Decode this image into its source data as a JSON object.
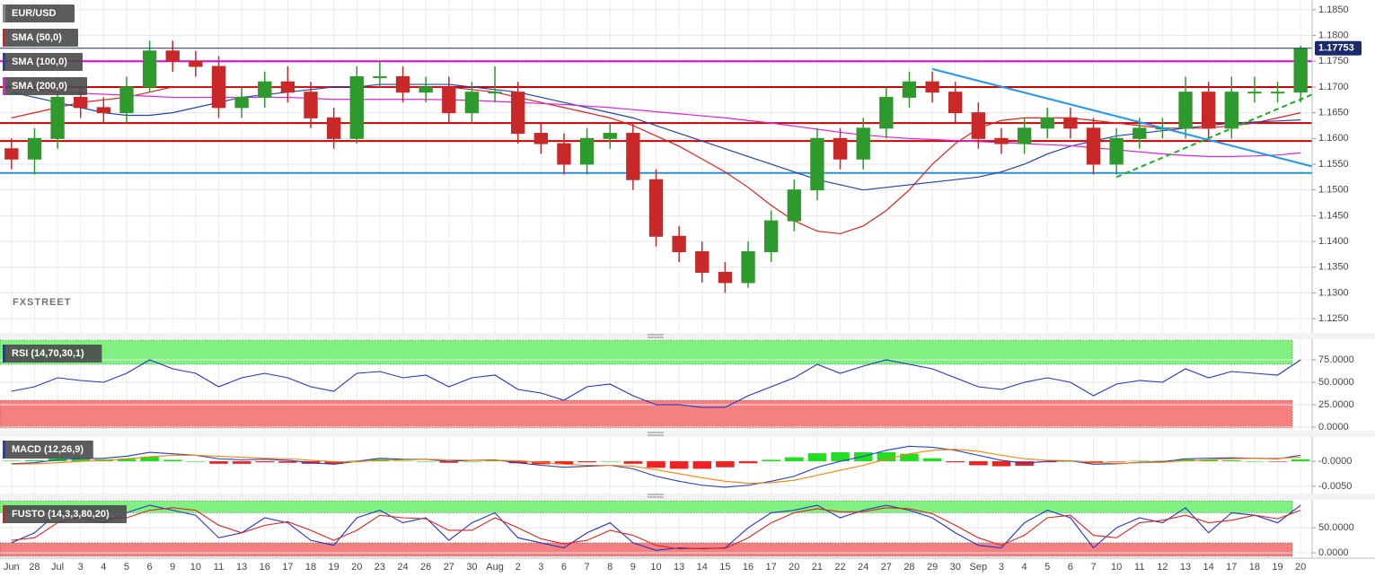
{
  "chart_data": [
    {
      "type": "candlestick",
      "name": "EUR/USD",
      "categories": [
        "Jun",
        "28",
        "Jul",
        "3",
        "4",
        "5",
        "6",
        "9",
        "10",
        "11",
        "13",
        "16",
        "17",
        "18",
        "19",
        "20",
        "23",
        "24",
        "26",
        "27",
        "30",
        "Aug",
        "2",
        "3",
        "6",
        "7",
        "8",
        "9",
        "10",
        "13",
        "14",
        "15",
        "16",
        "17",
        "20",
        "21",
        "22",
        "24",
        "27",
        "28",
        "29",
        "30",
        "Sep",
        "3",
        "4",
        "5",
        "6",
        "7",
        "10",
        "11",
        "12",
        "13",
        "14",
        "17",
        "18",
        "19",
        "20"
      ],
      "open": [
        1.158,
        1.156,
        1.16,
        1.168,
        1.166,
        1.165,
        1.17,
        1.177,
        1.175,
        1.174,
        1.166,
        1.168,
        1.171,
        1.169,
        1.164,
        1.16,
        1.172,
        1.172,
        1.169,
        1.17,
        1.165,
        1.169,
        1.169,
        1.161,
        1.159,
        1.155,
        1.16,
        1.161,
        1.152,
        1.141,
        1.138,
        1.134,
        1.132,
        1.138,
        1.144,
        1.15,
        1.16,
        1.156,
        1.162,
        1.168,
        1.171,
        1.169,
        1.165,
        1.16,
        1.159,
        1.162,
        1.164,
        1.162,
        1.155,
        1.16,
        1.162,
        1.162,
        1.169,
        1.162,
        1.169,
        1.169,
        1.169
      ],
      "high": [
        1.16,
        1.162,
        1.17,
        1.17,
        1.168,
        1.172,
        1.179,
        1.179,
        1.177,
        1.176,
        1.17,
        1.173,
        1.174,
        1.171,
        1.166,
        1.174,
        1.175,
        1.174,
        1.172,
        1.172,
        1.171,
        1.174,
        1.171,
        1.163,
        1.161,
        1.162,
        1.163,
        1.163,
        1.154,
        1.143,
        1.14,
        1.136,
        1.14,
        1.146,
        1.152,
        1.162,
        1.162,
        1.164,
        1.17,
        1.173,
        1.173,
        1.171,
        1.167,
        1.162,
        1.164,
        1.166,
        1.166,
        1.164,
        1.162,
        1.164,
        1.164,
        1.172,
        1.171,
        1.172,
        1.172,
        1.171,
        1.178
      ],
      "low": [
        1.154,
        1.153,
        1.158,
        1.164,
        1.163,
        1.163,
        1.169,
        1.173,
        1.172,
        1.164,
        1.164,
        1.166,
        1.167,
        1.162,
        1.158,
        1.159,
        1.17,
        1.167,
        1.167,
        1.163,
        1.163,
        1.167,
        1.159,
        1.157,
        1.153,
        1.153,
        1.158,
        1.15,
        1.139,
        1.136,
        1.132,
        1.13,
        1.131,
        1.136,
        1.142,
        1.148,
        1.154,
        1.154,
        1.16,
        1.166,
        1.167,
        1.163,
        1.158,
        1.157,
        1.157,
        1.16,
        1.16,
        1.153,
        1.153,
        1.158,
        1.16,
        1.16,
        1.16,
        1.16,
        1.167,
        1.167,
        1.167
      ],
      "close": [
        1.156,
        1.16,
        1.168,
        1.166,
        1.165,
        1.17,
        1.177,
        1.175,
        1.174,
        1.166,
        1.168,
        1.171,
        1.169,
        1.164,
        1.16,
        1.172,
        1.172,
        1.169,
        1.17,
        1.165,
        1.169,
        1.169,
        1.161,
        1.159,
        1.155,
        1.16,
        1.161,
        1.152,
        1.141,
        1.138,
        1.134,
        1.132,
        1.138,
        1.144,
        1.15,
        1.16,
        1.156,
        1.162,
        1.168,
        1.171,
        1.169,
        1.165,
        1.16,
        1.159,
        1.162,
        1.164,
        1.162,
        1.155,
        1.16,
        1.162,
        1.162,
        1.169,
        1.162,
        1.169,
        1.169,
        1.169,
        1.1775
      ],
      "up_color": "#2e9a2e",
      "down_color": "#c82828",
      "name_color": "#888888",
      "series": [
        {
          "name": "SMA (50,0)",
          "color": "#e02020",
          "values": [
            1.164,
            1.165,
            1.166,
            1.167,
            1.1675,
            1.168,
            1.169,
            1.17,
            1.17,
            1.17,
            1.17,
            1.17,
            1.17,
            1.17,
            1.17,
            1.17,
            1.17,
            1.17,
            1.17,
            1.17,
            1.1695,
            1.169,
            1.168,
            1.167,
            1.166,
            1.165,
            1.164,
            1.1625,
            1.1605,
            1.1585,
            1.156,
            1.1535,
            1.1505,
            1.147,
            1.144,
            1.142,
            1.1415,
            1.143,
            1.146,
            1.15,
            1.155,
            1.159,
            1.162,
            1.1635,
            1.164,
            1.164,
            1.164,
            1.1635,
            1.163,
            1.1625,
            1.162,
            1.162,
            1.162,
            1.1625,
            1.163,
            1.164,
            1.165
          ]
        },
        {
          "name": "SMA (100,0)",
          "color": "#2244aa",
          "values": [
            1.169,
            1.168,
            1.167,
            1.166,
            1.165,
            1.1645,
            1.1645,
            1.165,
            1.166,
            1.167,
            1.168,
            1.1685,
            1.169,
            1.1695,
            1.17,
            1.17,
            1.1705,
            1.1705,
            1.1705,
            1.1705,
            1.17,
            1.1695,
            1.169,
            1.168,
            1.167,
            1.166,
            1.165,
            1.164,
            1.1625,
            1.161,
            1.1595,
            1.158,
            1.1565,
            1.155,
            1.1535,
            1.152,
            1.151,
            1.15,
            1.1505,
            1.151,
            1.1515,
            1.152,
            1.1525,
            1.1535,
            1.155,
            1.157,
            1.1585,
            1.1595,
            1.1605,
            1.161,
            1.1615,
            1.162,
            1.1625,
            1.163,
            1.1632,
            1.1634,
            1.1636
          ]
        },
        {
          "name": "SMA (200,0)",
          "color": "#dd22dd",
          "values": [
            1.17,
            1.1695,
            1.169,
            1.1688,
            1.1686,
            1.1684,
            1.1682,
            1.168,
            1.168,
            1.168,
            1.168,
            1.168,
            1.168,
            1.1678,
            1.1676,
            1.1676,
            1.1676,
            1.1676,
            1.1676,
            1.1675,
            1.1674,
            1.1672,
            1.167,
            1.1668,
            1.1666,
            1.1663,
            1.166,
            1.1656,
            1.1652,
            1.1648,
            1.1644,
            1.164,
            1.1635,
            1.163,
            1.1624,
            1.1618,
            1.1612,
            1.1607,
            1.1603,
            1.16,
            1.1598,
            1.1596,
            1.1594,
            1.1592,
            1.159,
            1.1588,
            1.1586,
            1.1582,
            1.1578,
            1.1574,
            1.157,
            1.1567,
            1.1565,
            1.1565,
            1.1566,
            1.1568,
            1.1572
          ]
        }
      ],
      "levels": [
        {
          "value": 1.175,
          "color": "#e000e0"
        },
        {
          "value": 1.17,
          "color": "#cc0000"
        },
        {
          "value": 1.163,
          "color": "#cc0000"
        },
        {
          "value": 1.1595,
          "color": "#cc0000"
        },
        {
          "value": 1.1533,
          "color": "#2a8fd0"
        }
      ],
      "trendlines": [
        {
          "x": [
            40,
            57
          ],
          "values": [
            1.1735,
            1.154
          ],
          "color": "#2196f3",
          "dashed": false
        },
        {
          "x": [
            48,
            57
          ],
          "values": [
            1.1525,
            1.1695
          ],
          "color": "#22aa22",
          "dashed": true
        }
      ],
      "last_price": 1.17753,
      "last_price_color": "#1a2a6c",
      "watermark": "FXSTREET",
      "ylim": [
        1.1224,
        1.1869
      ],
      "yticks": [
        {
          "value": 1.185,
          "label": "1.1850"
        },
        {
          "value": 1.18,
          "label": "1.1800"
        },
        {
          "value": 1.175,
          "label": "1.1750"
        },
        {
          "value": 1.17,
          "label": "1.1700"
        },
        {
          "value": 1.165,
          "label": "1.1650"
        },
        {
          "value": 1.16,
          "label": "1.1600"
        },
        {
          "value": 1.155,
          "label": "1.1550"
        },
        {
          "value": 1.15,
          "label": "1.1500"
        },
        {
          "value": 1.145,
          "label": "1.1450"
        },
        {
          "value": 1.14,
          "label": "1.1400"
        },
        {
          "value": 1.135,
          "label": "1.1350"
        },
        {
          "value": 1.13,
          "label": "1.1300"
        },
        {
          "value": 1.125,
          "label": "1.1250"
        }
      ],
      "grid": true
    },
    {
      "type": "line",
      "title": "RSI (14,70,30,1)",
      "title_color": "#2233cc",
      "series": [
        {
          "color": "#2233cc",
          "values": [
            40,
            45,
            55,
            52,
            50,
            60,
            75,
            65,
            60,
            45,
            55,
            60,
            55,
            45,
            40,
            60,
            62,
            55,
            58,
            45,
            55,
            58,
            42,
            38,
            30,
            45,
            48,
            35,
            25,
            25,
            22,
            22,
            35,
            45,
            55,
            70,
            60,
            68,
            75,
            70,
            65,
            55,
            45,
            42,
            50,
            55,
            50,
            35,
            48,
            52,
            50,
            65,
            55,
            62,
            60,
            58,
            75
          ]
        }
      ],
      "bands": [
        {
          "from": 70,
          "to": 97,
          "color": "#80f080"
        },
        {
          "from": -1,
          "to": 30,
          "color": "#f48080"
        }
      ],
      "ylim": [
        -1,
        97
      ],
      "yticks": [
        {
          "value": 75,
          "label": "75.0000"
        },
        {
          "value": 50,
          "label": "50.0000"
        },
        {
          "value": 25,
          "label": "25.0000"
        },
        {
          "value": 0,
          "label": "0.0000"
        }
      ]
    },
    {
      "type": "macd",
      "title": "MACD (12,26,9)",
      "title_color": "#2040c0",
      "series": [
        {
          "color": "#2040c0",
          "values": [
            -0.0005,
            -0.0003,
            0.0003,
            0.0005,
            0.0006,
            0.001,
            0.0018,
            0.0015,
            0.0012,
            0.0005,
            0.0003,
            0.0004,
            0.0002,
            -0.0003,
            -0.0006,
            0.0,
            0.0006,
            0.0004,
            0.0004,
            0.0,
            0.0002,
            0.0003,
            -0.0003,
            -0.0008,
            -0.0012,
            -0.001,
            -0.0008,
            -0.0015,
            -0.003,
            -0.004,
            -0.0048,
            -0.0052,
            -0.0048,
            -0.004,
            -0.003,
            -0.0012,
            0.0,
            0.001,
            0.0022,
            0.003,
            0.0028,
            0.0022,
            0.0012,
            0.0002,
            -0.0004,
            0.0,
            0.0001,
            -0.0006,
            -0.0005,
            -0.0002,
            -0.0001,
            0.0005,
            0.0006,
            0.0007,
            0.0006,
            0.0005,
            0.0012
          ]
        },
        {
          "color": "#ff8000",
          "values": [
            -0.0006,
            -0.0005,
            -0.0003,
            0.0,
            0.0002,
            0.0005,
            0.0009,
            0.0012,
            0.0012,
            0.001,
            0.0008,
            0.0006,
            0.0005,
            0.0002,
            -0.0001,
            -0.0001,
            0.0002,
            0.0003,
            0.0004,
            0.0003,
            0.0002,
            0.0002,
            0.0001,
            -0.0002,
            -0.0006,
            -0.0008,
            -0.0008,
            -0.001,
            -0.0017,
            -0.0025,
            -0.0033,
            -0.004,
            -0.0044,
            -0.0043,
            -0.0038,
            -0.0028,
            -0.0018,
            -0.0008,
            0.0004,
            0.0015,
            0.0022,
            0.0024,
            0.002,
            0.0012,
            0.0005,
            0.0002,
            0.0001,
            -0.0002,
            -0.0004,
            -0.0003,
            -0.0002,
            0.0001,
            0.0003,
            0.0005,
            0.0006,
            0.0006,
            0.0008
          ]
        }
      ],
      "histogram": [
        0.0001,
        0.0002,
        0.0006,
        0.0005,
        0.0004,
        0.0005,
        0.0009,
        0.0003,
        0.0,
        -0.0005,
        -0.0005,
        -0.0002,
        -0.0003,
        -0.0005,
        -0.0005,
        0.0001,
        0.0004,
        0.0001,
        0.0,
        -0.0003,
        0.0,
        0.0001,
        -0.0004,
        -0.0006,
        -0.0006,
        -0.0002,
        0.0,
        -0.0005,
        -0.0013,
        -0.0015,
        -0.0015,
        -0.0012,
        -0.0004,
        0.0003,
        0.0008,
        0.0016,
        0.0018,
        0.0018,
        0.0018,
        0.0015,
        0.0006,
        -0.0002,
        -0.0008,
        -0.001,
        -0.0009,
        -0.0002,
        0.0,
        -0.0004,
        -0.0001,
        0.0001,
        0.0001,
        0.0004,
        0.0003,
        0.0002,
        0.0,
        -0.0001,
        0.0004
      ],
      "histogram_colors": [
        "#22dd22",
        "#ee2222"
      ],
      "ylim": [
        -0.007,
        0.0045
      ],
      "yticks": [
        {
          "value": 0,
          "label": "-0.0000"
        },
        {
          "value": -0.005,
          "label": "-0.0050"
        }
      ]
    },
    {
      "type": "line",
      "title": "FUSTO (14,3,3,80,20)",
      "title_color": "#cc2222",
      "series": [
        {
          "color": "#2233cc",
          "values": [
            20,
            40,
            80,
            70,
            60,
            80,
            95,
            85,
            75,
            30,
            40,
            70,
            60,
            25,
            15,
            70,
            85,
            60,
            70,
            25,
            60,
            80,
            30,
            20,
            10,
            40,
            60,
            20,
            5,
            10,
            8,
            10,
            50,
            80,
            85,
            95,
            70,
            85,
            95,
            85,
            70,
            40,
            15,
            10,
            60,
            85,
            70,
            10,
            50,
            70,
            60,
            90,
            40,
            80,
            75,
            60,
            95
          ]
        },
        {
          "color": "#dd2222",
          "values": [
            25,
            30,
            60,
            72,
            68,
            70,
            85,
            90,
            85,
            55,
            40,
            55,
            62,
            45,
            25,
            45,
            75,
            70,
            68,
            45,
            45,
            70,
            50,
            28,
            18,
            25,
            45,
            35,
            15,
            8,
            9,
            9,
            30,
            60,
            80,
            88,
            82,
            82,
            90,
            88,
            78,
            55,
            30,
            15,
            35,
            70,
            75,
            35,
            30,
            60,
            65,
            75,
            60,
            65,
            75,
            68,
            85
          ]
        }
      ],
      "bands": [
        {
          "from": 80,
          "to": 104,
          "color": "#80f080"
        },
        {
          "from": -7,
          "to": 20,
          "color": "#f48080"
        }
      ],
      "ylim": [
        -7,
        104
      ],
      "yticks": [
        {
          "value": 50,
          "label": "50.0000"
        },
        {
          "value": 0,
          "label": "0.0000"
        }
      ]
    }
  ]
}
